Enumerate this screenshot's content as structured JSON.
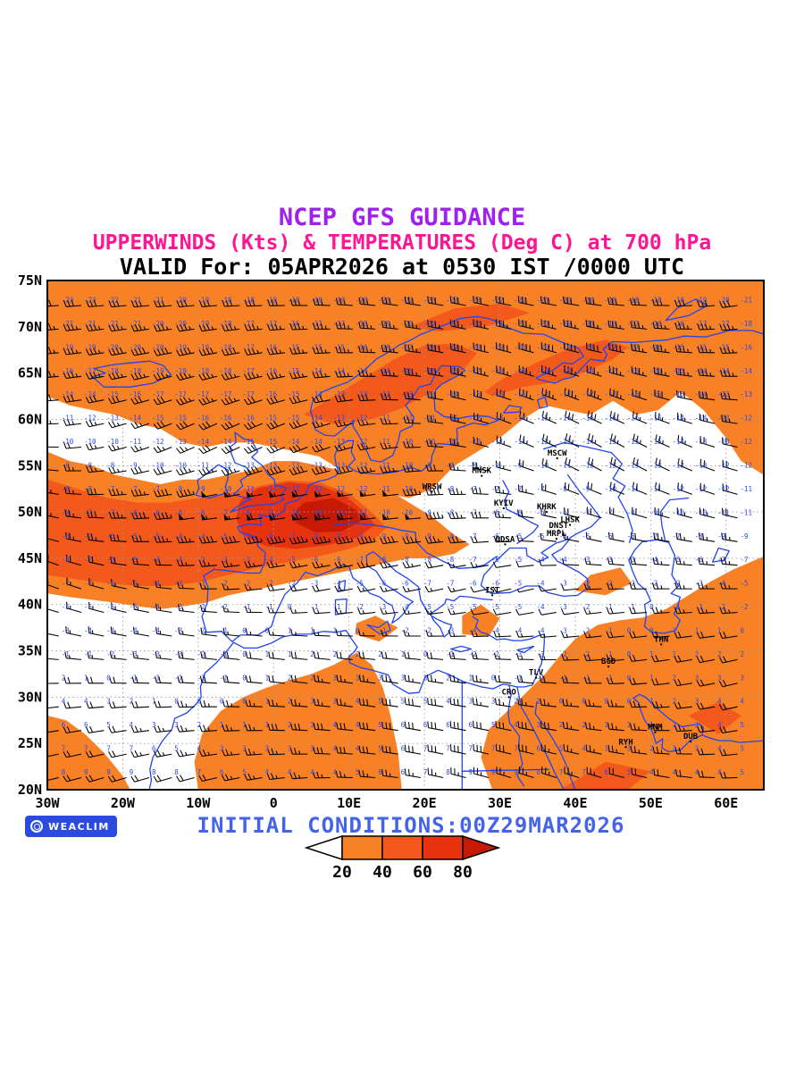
{
  "header": {
    "line1": "NCEP GFS GUIDANCE",
    "line2": "UPPERWINDS (Kts) & TEMPERATURES (Deg C) at 700 hPa",
    "line3": "VALID For: 05APR2026 at 0530 IST /0000 UTC",
    "line1_color": "#A020F0",
    "line2_color": "#FF1493",
    "line3_color": "#000000"
  },
  "footer": {
    "initial_conditions": "INITIAL CONDITIONS:00Z29MAR2026",
    "text_color": "#4463E8",
    "logo_text": "WEACLIM",
    "logo_bg": "#2B4BE0"
  },
  "axes": {
    "lat_labels": [
      "75N",
      "70N",
      "65N",
      "60N",
      "55N",
      "50N",
      "45N",
      "40N",
      "35N",
      "30N",
      "25N",
      "20N"
    ],
    "lon_labels": [
      "30W",
      "20W",
      "10W",
      "0",
      "10E",
      "20E",
      "30E",
      "40E",
      "50E",
      "60E"
    ],
    "lon_values": [
      -30,
      -20,
      -10,
      0,
      10,
      20,
      30,
      40,
      50,
      60
    ]
  },
  "colorbar": {
    "tick_labels": [
      "20",
      "40",
      "60",
      "80"
    ],
    "fill_colors": [
      "#F98125",
      "#F2591B",
      "#E73210"
    ],
    "over_color": "#C61A05",
    "under_color": "#FFFFFF"
  },
  "map_colors": {
    "coastline": "#2244EE",
    "grid": "#999999",
    "barb": "#000000",
    "temperature_text": "#2B49E8",
    "shade_20": "#F98125",
    "shade_40": "#F2591B",
    "shade_60": "#E73210",
    "shade_80": "#C61A05",
    "frame": "#000000"
  },
  "stations": [
    {
      "code": "MSCW",
      "lon": 37.6,
      "lat": 55.8
    },
    {
      "code": "MNSK",
      "lon": 27.6,
      "lat": 53.9
    },
    {
      "code": "WRSW",
      "lon": 21.0,
      "lat": 52.2
    },
    {
      "code": "KYIV",
      "lon": 30.5,
      "lat": 50.4
    },
    {
      "code": "KHRK",
      "lon": 36.2,
      "lat": 50.0
    },
    {
      "code": "LHSK",
      "lon": 39.3,
      "lat": 48.6
    },
    {
      "code": "DNST",
      "lon": 37.8,
      "lat": 48.0
    },
    {
      "code": "MRPL",
      "lon": 37.5,
      "lat": 47.1
    },
    {
      "code": "ODSA",
      "lon": 30.7,
      "lat": 46.5
    },
    {
      "code": "IST",
      "lon": 29.0,
      "lat": 41.0
    },
    {
      "code": "THN",
      "lon": 51.4,
      "lat": 35.7
    },
    {
      "code": "BGD",
      "lon": 44.4,
      "lat": 33.3
    },
    {
      "code": "TLV",
      "lon": 34.8,
      "lat": 32.1
    },
    {
      "code": "CRO",
      "lon": 31.2,
      "lat": 30.0
    },
    {
      "code": "RYH",
      "lon": 46.7,
      "lat": 24.6
    },
    {
      "code": "MNM",
      "lon": 50.6,
      "lat": 26.2
    },
    {
      "code": "DUB",
      "lon": 55.3,
      "lat": 25.2
    }
  ],
  "chart_data": {
    "type": "map",
    "title": "NCEP GFS GUIDANCE",
    "subtitle": "UPPERWINDS (Kts) & TEMPERATURES (Deg C) at 700 hPa",
    "valid_time": "VALID For: 05APR2026 at 0530 IST /0000 UTC",
    "initial_conditions": "INITIAL CONDITIONS:00Z29MAR2026",
    "variable": "Wind barbs with wind-speed shading (Kts) and temperatures (Deg C) at 700 hPa",
    "lon_range": [
      "30W",
      "65E"
    ],
    "lat_range": [
      "20N",
      "75N"
    ],
    "lat_gridlines_deg": 5,
    "lon_gridlines_deg": 10,
    "shading_thresholds_kts": [
      20,
      40,
      60,
      80
    ],
    "shading_units": "Kts",
    "temperature_units": "Deg C",
    "legend_position": "bottom-center",
    "notable_features": [
      "Jet streak >60 Kts centered near 50N 5-12E over western/central Europe",
      "Broad >20 Kts band across the North Atlantic and northern Europe/Scandinavia",
      ">20 Kts band across North Africa and the Middle East",
      "Light winds (<20 Kts) over southeastern Europe, Turkey and the eastern white region"
    ]
  }
}
